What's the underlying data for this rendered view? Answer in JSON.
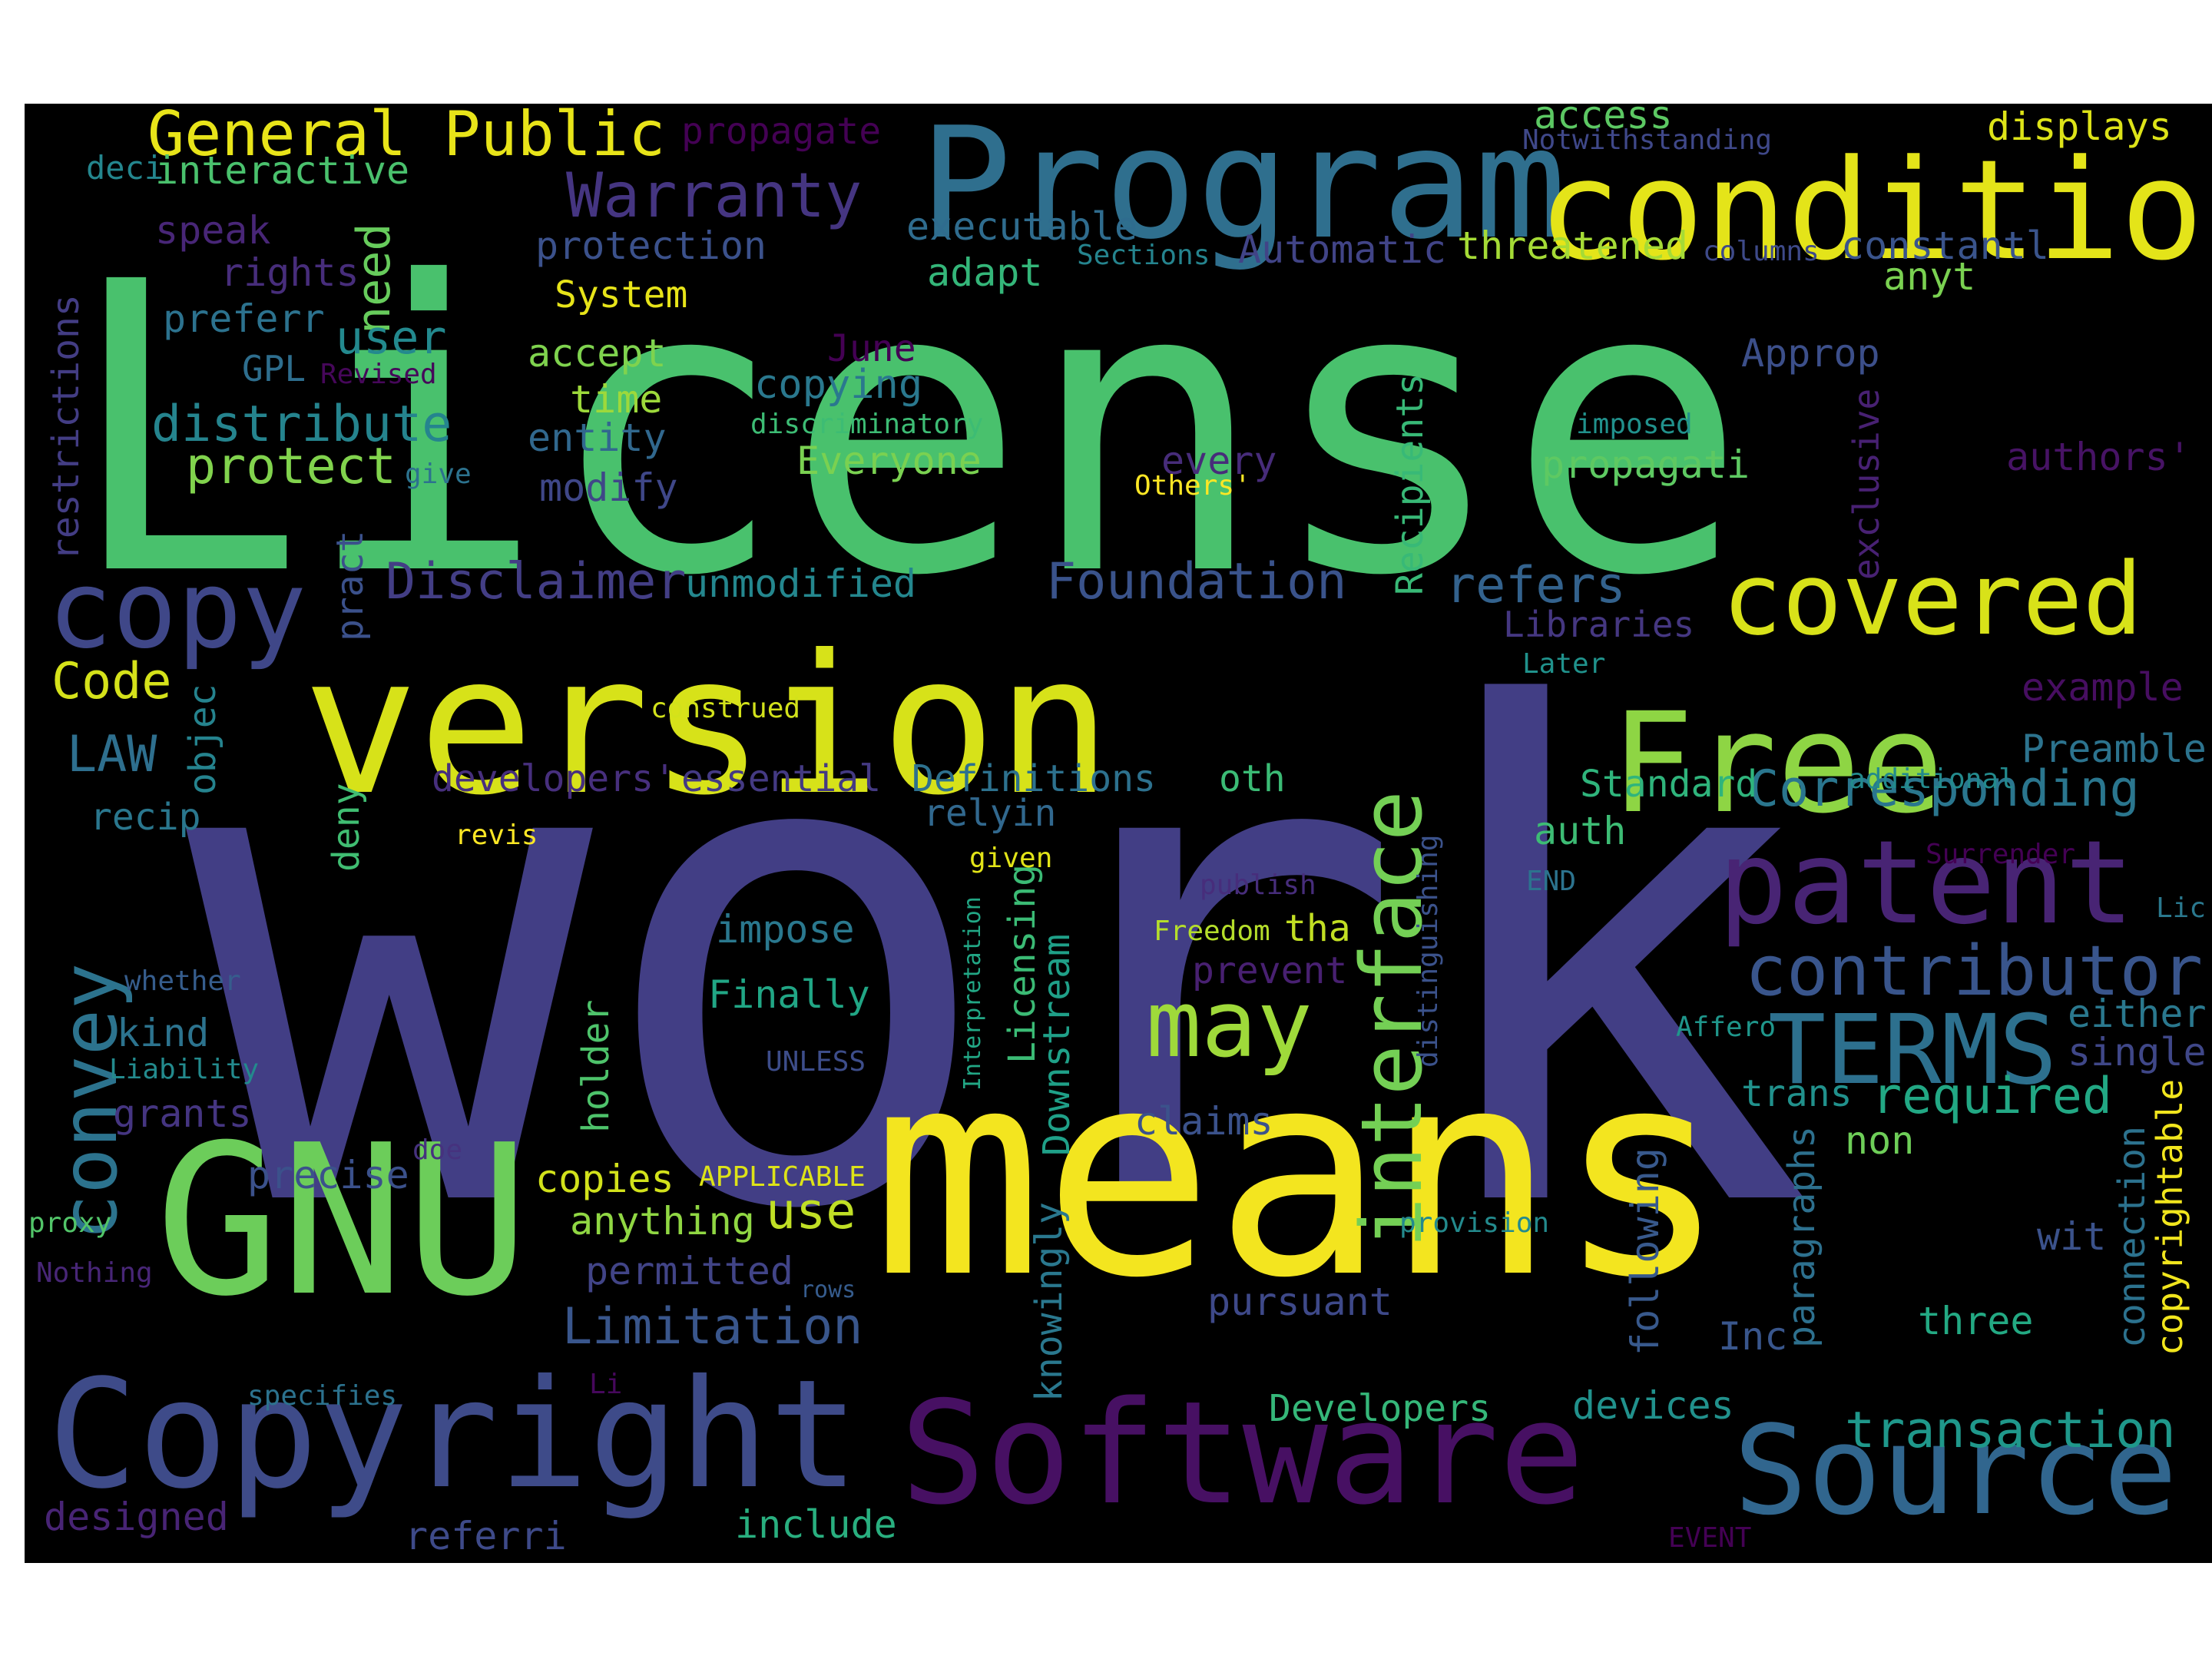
{
  "image": {
    "background": "#000000",
    "palette": [
      "#440154",
      "#3b528b",
      "#21918c",
      "#5ec962",
      "#fde725"
    ],
    "words": [
      {
        "text": "License",
        "color": "#49c16d"
      },
      {
        "text": "work",
        "color": "#423e85"
      },
      {
        "text": "means",
        "color": "#f3e51f"
      },
      {
        "text": "version",
        "color": "#d7e219"
      },
      {
        "text": "Program",
        "color": "#2f6f8e"
      },
      {
        "text": "conditions",
        "color": "#e4e419"
      },
      {
        "text": "GNU",
        "color": "#6ccd5a"
      },
      {
        "text": "Copyright",
        "color": "#3e4b89"
      },
      {
        "text": "Software",
        "color": "#471063"
      },
      {
        "text": "Source",
        "color": "#31668e"
      },
      {
        "text": "Free",
        "color": "#8ed544"
      },
      {
        "text": "covered",
        "color": "#d8e219"
      },
      {
        "text": "patent",
        "color": "#482474"
      },
      {
        "text": "interface",
        "color": "#74d055"
      },
      {
        "text": "copy",
        "color": "#3f4788"
      },
      {
        "text": "may",
        "color": "#9fda3a"
      },
      {
        "text": "TERMS",
        "color": "#2d708e"
      },
      {
        "text": "contributor",
        "color": "#39558c"
      },
      {
        "text": "convey",
        "color": "#2c738e"
      },
      {
        "text": "General Public",
        "color": "#e8e419"
      },
      {
        "text": "Warranty",
        "color": "#453581"
      },
      {
        "text": "Foundation",
        "color": "#3a538b"
      },
      {
        "text": "Disclaimer",
        "color": "#433e85"
      },
      {
        "text": "refers",
        "color": "#33628d"
      },
      {
        "text": "Corresponding",
        "color": "#2a768e"
      },
      {
        "text": "transaction",
        "color": "#1f988b"
      },
      {
        "text": "distribute",
        "color": "#25848e"
      },
      {
        "text": "protect",
        "color": "#81d34d"
      },
      {
        "text": "Limitation",
        "color": "#39568c"
      },
      {
        "text": "required",
        "color": "#22a884"
      },
      {
        "text": "executable",
        "color": "#2f6c8e"
      },
      {
        "text": "access",
        "color": "#5cc863"
      },
      {
        "text": "displays",
        "color": "#dde318"
      },
      {
        "text": "interactive",
        "color": "#4ac16d"
      },
      {
        "text": "propagate",
        "color": "#440154"
      },
      {
        "text": "Notwithstanding",
        "color": "#3f4889"
      },
      {
        "text": "deci",
        "color": "#24868e"
      },
      {
        "text": "speak",
        "color": "#482677"
      },
      {
        "text": "rights",
        "color": "#472d7b"
      },
      {
        "text": "preferr",
        "color": "#2c728e"
      },
      {
        "text": "GPL",
        "color": "#2e6e8e"
      },
      {
        "text": "Revised",
        "color": "#46075a"
      },
      {
        "text": "need",
        "color": "#67cc5c"
      },
      {
        "text": "user",
        "color": "#23898e"
      },
      {
        "text": "restrictions",
        "color": "#433d84"
      },
      {
        "text": "protection",
        "color": "#3b518b"
      },
      {
        "text": "adapt",
        "color": "#34b679"
      },
      {
        "text": "Sections",
        "color": "#25848e"
      },
      {
        "text": "Automatic",
        "color": "#414487"
      },
      {
        "text": "threatened",
        "color": "#a5db36"
      },
      {
        "text": "columns",
        "color": "#3e4a89"
      },
      {
        "text": "constantl",
        "color": "#3a548c"
      },
      {
        "text": "anyt",
        "color": "#7ad151"
      },
      {
        "text": "System",
        "color": "#e7e419"
      },
      {
        "text": "accept",
        "color": "#7fd34e"
      },
      {
        "text": "time",
        "color": "#9dd93b"
      },
      {
        "text": "entity",
        "color": "#31688e"
      },
      {
        "text": "modify",
        "color": "#3f4788"
      },
      {
        "text": "June",
        "color": "#440154"
      },
      {
        "text": "copying",
        "color": "#2a788e"
      },
      {
        "text": "discriminatory",
        "color": "#3dbc74"
      },
      {
        "text": "Everyone",
        "color": "#7ad151"
      },
      {
        "text": "Recipients",
        "color": "#38b977"
      },
      {
        "text": "Approp",
        "color": "#3c4f8a"
      },
      {
        "text": "exclusive",
        "color": "#482173"
      },
      {
        "text": "imposed",
        "color": "#21918c"
      },
      {
        "text": "every",
        "color": "#472c7a"
      },
      {
        "text": "propagati",
        "color": "#5ec962"
      },
      {
        "text": "authors'",
        "color": "#471365"
      },
      {
        "text": "Others'",
        "color": "#fde725"
      },
      {
        "text": "give",
        "color": "#2c728e"
      },
      {
        "text": "Code",
        "color": "#d5e21a"
      },
      {
        "text": "pract",
        "color": "#3b518b"
      },
      {
        "text": "objec",
        "color": "#25838e"
      },
      {
        "text": "unmodified",
        "color": "#24878e"
      },
      {
        "text": "Libraries",
        "color": "#453781"
      },
      {
        "text": "Later",
        "color": "#20928c"
      },
      {
        "text": "example",
        "color": "#470e61"
      },
      {
        "text": "construed",
        "color": "#d2e21b"
      },
      {
        "text": "LAW",
        "color": "#2e6f8e"
      },
      {
        "text": "developers'",
        "color": "#472f7d"
      },
      {
        "text": "essential",
        "color": "#443a83"
      },
      {
        "text": "Definitions",
        "color": "#2d718e"
      },
      {
        "text": "oth",
        "color": "#3bbb75"
      },
      {
        "text": "Standard",
        "color": "#2fb47c"
      },
      {
        "text": "additional",
        "color": "#238a8d"
      },
      {
        "text": "Preamble",
        "color": "#2c738e"
      },
      {
        "text": "recip",
        "color": "#2a778e"
      },
      {
        "text": "deny",
        "color": "#40bd72"
      },
      {
        "text": "revis",
        "color": "#fde725"
      },
      {
        "text": "relyin",
        "color": "#31688e"
      },
      {
        "text": "auth",
        "color": "#3dbc74"
      },
      {
        "text": "Surrender",
        "color": "#440154"
      },
      {
        "text": "given",
        "color": "#e2e418"
      },
      {
        "text": "publish",
        "color": "#472d7b"
      },
      {
        "text": "END",
        "color": "#2c738e"
      },
      {
        "text": "distinguishing",
        "color": "#3b528b"
      },
      {
        "text": "Freedom",
        "color": "#b5de2b"
      },
      {
        "text": "tha",
        "color": "#c2df23"
      },
      {
        "text": "Lic",
        "color": "#2a788e"
      },
      {
        "text": "impose",
        "color": "#2a788e"
      },
      {
        "text": "whether",
        "color": "#365d8d"
      },
      {
        "text": "prevent",
        "color": "#482071"
      },
      {
        "text": "Finally",
        "color": "#21a685"
      },
      {
        "text": "Licensing",
        "color": "#3bbb75"
      },
      {
        "text": "Downstream",
        "color": "#1fa088"
      },
      {
        "text": "Interpretation",
        "color": "#22a785"
      },
      {
        "text": "holder",
        "color": "#4ec36b"
      },
      {
        "text": "kind",
        "color": "#2c738e"
      },
      {
        "text": "Liability",
        "color": "#238a8d"
      },
      {
        "text": "UNLESS",
        "color": "#3d4d8a"
      },
      {
        "text": "Affero",
        "color": "#1f968b"
      },
      {
        "text": "either",
        "color": "#2a788e"
      },
      {
        "text": "single",
        "color": "#3f4788"
      },
      {
        "text": "grants",
        "color": "#453581"
      },
      {
        "text": "claims",
        "color": "#3b528b"
      },
      {
        "text": "trans",
        "color": "#21918c"
      },
      {
        "text": "non",
        "color": "#6ece58"
      },
      {
        "text": "copyrightable",
        "color": "#f1e51d"
      },
      {
        "text": "precise",
        "color": "#3b518b"
      },
      {
        "text": "doe",
        "color": "#46327e"
      },
      {
        "text": "copies",
        "color": "#d2e21b"
      },
      {
        "text": "APPLICABLE",
        "color": "#dde318"
      },
      {
        "text": "use",
        "color": "#c0df25"
      },
      {
        "text": "anything",
        "color": "#90d743"
      },
      {
        "text": "knowingly",
        "color": "#2a788e"
      },
      {
        "text": "following",
        "color": "#38598c"
      },
      {
        "text": "paragraphs",
        "color": "#2d708e"
      },
      {
        "text": "connection",
        "color": "#2c728e"
      },
      {
        "text": "proxy",
        "color": "#52c569"
      },
      {
        "text": "provision",
        "color": "#238a8d"
      },
      {
        "text": "wit",
        "color": "#3b528b"
      },
      {
        "text": "Nothing",
        "color": "#482677"
      },
      {
        "text": "permitted",
        "color": "#414487"
      },
      {
        "text": "rows",
        "color": "#365c8d"
      },
      {
        "text": "pursuant",
        "color": "#3e4989"
      },
      {
        "text": "three",
        "color": "#23a983"
      },
      {
        "text": "Inc",
        "color": "#39568c"
      },
      {
        "text": "specifies",
        "color": "#2c728e"
      },
      {
        "text": "Li",
        "color": "#46085c"
      },
      {
        "text": "Developers",
        "color": "#35b779"
      },
      {
        "text": "devices",
        "color": "#21918c"
      },
      {
        "text": "designed",
        "color": "#482475"
      },
      {
        "text": "referri",
        "color": "#3e4a89"
      },
      {
        "text": "include",
        "color": "#29af7f"
      },
      {
        "text": "EVENT",
        "color": "#440154"
      }
    ]
  }
}
